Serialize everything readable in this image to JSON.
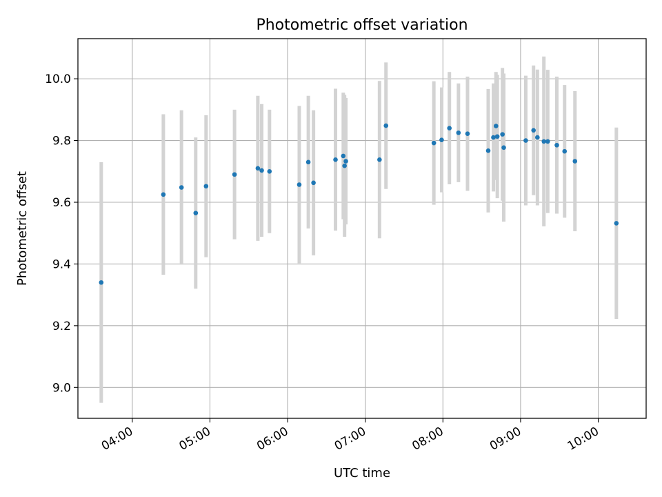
{
  "chart_data": {
    "type": "scatter",
    "title": "Photometric offset variation",
    "xlabel": "UTC time",
    "ylabel": "Photometric offset",
    "xlim": [
      "03:18",
      "10:37"
    ],
    "ylim": [
      8.9,
      10.13
    ],
    "x_ticks": [
      "04:00",
      "05:00",
      "06:00",
      "07:00",
      "08:00",
      "09:00",
      "10:00"
    ],
    "y_ticks": [
      "9.0",
      "9.2",
      "9.4",
      "9.6",
      "9.8",
      "10.0"
    ],
    "grid": true,
    "colors": {
      "marker": "#1f77b4",
      "errorbar": "#d3d3d3",
      "grid": "#b0b0b0"
    },
    "points": [
      {
        "x": "03:36",
        "y": 9.34,
        "err": 0.39
      },
      {
        "x": "04:24",
        "y": 9.625,
        "err": 0.26
      },
      {
        "x": "04:38",
        "y": 9.648,
        "err": 0.25
      },
      {
        "x": "04:49",
        "y": 9.565,
        "err": 0.245
      },
      {
        "x": "04:57",
        "y": 9.652,
        "err": 0.23
      },
      {
        "x": "05:19",
        "y": 9.69,
        "err": 0.21
      },
      {
        "x": "05:37",
        "y": 9.71,
        "err": 0.235
      },
      {
        "x": "05:40",
        "y": 9.703,
        "err": 0.215
      },
      {
        "x": "05:46",
        "y": 9.7,
        "err": 0.2
      },
      {
        "x": "06:09",
        "y": 9.657,
        "err": 0.255
      },
      {
        "x": "06:16",
        "y": 9.73,
        "err": 0.215
      },
      {
        "x": "06:20",
        "y": 9.663,
        "err": 0.235
      },
      {
        "x": "06:37",
        "y": 9.738,
        "err": 0.23
      },
      {
        "x": "06:43",
        "y": 9.75,
        "err": 0.205
      },
      {
        "x": "06:44",
        "y": 9.718,
        "err": 0.23
      },
      {
        "x": "06:45",
        "y": 9.733,
        "err": 0.205
      },
      {
        "x": "07:11",
        "y": 9.738,
        "err": 0.255
      },
      {
        "x": "07:16",
        "y": 9.848,
        "err": 0.205
      },
      {
        "x": "07:53",
        "y": 9.792,
        "err": 0.2
      },
      {
        "x": "07:59",
        "y": 9.802,
        "err": 0.17
      },
      {
        "x": "08:05",
        "y": 9.84,
        "err": 0.182
      },
      {
        "x": "08:12",
        "y": 9.825,
        "err": 0.16
      },
      {
        "x": "08:19",
        "y": 9.822,
        "err": 0.185
      },
      {
        "x": "08:35",
        "y": 9.767,
        "err": 0.2
      },
      {
        "x": "08:39",
        "y": 9.81,
        "err": 0.175
      },
      {
        "x": "08:41",
        "y": 9.847,
        "err": 0.175
      },
      {
        "x": "08:42",
        "y": 9.813,
        "err": 0.2
      },
      {
        "x": "08:46",
        "y": 9.82,
        "err": 0.215
      },
      {
        "x": "08:47",
        "y": 9.777,
        "err": 0.24
      },
      {
        "x": "09:04",
        "y": 9.8,
        "err": 0.21
      },
      {
        "x": "09:10",
        "y": 9.833,
        "err": 0.21
      },
      {
        "x": "09:13",
        "y": 9.81,
        "err": 0.22
      },
      {
        "x": "09:18",
        "y": 9.797,
        "err": 0.275
      },
      {
        "x": "09:21",
        "y": 9.797,
        "err": 0.232
      },
      {
        "x": "09:28",
        "y": 9.785,
        "err": 0.222
      },
      {
        "x": "09:34",
        "y": 9.765,
        "err": 0.215
      },
      {
        "x": "09:42",
        "y": 9.733,
        "err": 0.227
      },
      {
        "x": "10:14",
        "y": 9.532,
        "err": 0.31
      }
    ]
  }
}
